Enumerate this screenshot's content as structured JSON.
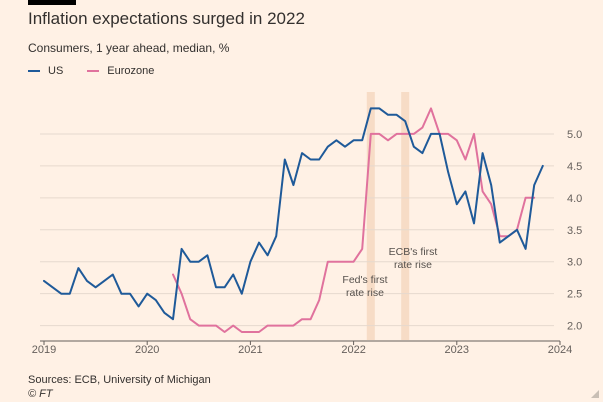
{
  "title": "Inflation expectations surged in 2022",
  "subtitle": "Consumers, 1 year ahead, median, %",
  "source": "Sources: ECB, University of Michigan",
  "credit": "© FT",
  "chart_data": {
    "type": "line",
    "x_ticks": [
      "2019",
      "2020",
      "2021",
      "2022",
      "2023",
      "2024"
    ],
    "y_ticks": [
      "2.0",
      "2.5",
      "3.0",
      "3.5",
      "4.0",
      "4.5",
      "5.0"
    ],
    "ylim": [
      1.9,
      5.5
    ],
    "xlim": [
      "2019-01",
      "2024-01"
    ],
    "grid": true,
    "legend_position": "top-left",
    "series": [
      {
        "name": "US",
        "color": "#1f5a99",
        "start": "2019-01",
        "values": [
          2.7,
          2.6,
          2.5,
          2.5,
          2.9,
          2.7,
          2.6,
          2.7,
          2.8,
          2.5,
          2.5,
          2.3,
          2.5,
          2.4,
          2.2,
          2.1,
          3.2,
          3.0,
          3.0,
          3.1,
          2.6,
          2.6,
          2.8,
          2.5,
          3.0,
          3.3,
          3.1,
          3.4,
          4.6,
          4.2,
          4.7,
          4.6,
          4.6,
          4.8,
          4.9,
          4.8,
          4.9,
          4.9,
          5.4,
          5.4,
          5.3,
          5.3,
          5.2,
          4.8,
          4.7,
          5.0,
          5.0,
          4.4,
          3.9,
          4.1,
          3.6,
          4.7,
          4.2,
          3.3,
          3.4,
          3.5,
          3.2,
          4.2,
          4.5
        ]
      },
      {
        "name": "Eurozone",
        "color": "#e0729d",
        "start": "2020-04",
        "values": [
          2.8,
          2.5,
          2.1,
          2.0,
          2.0,
          2.0,
          1.9,
          2.0,
          1.9,
          1.9,
          1.9,
          2.0,
          2.0,
          2.0,
          2.0,
          2.1,
          2.1,
          2.4,
          3.0,
          3.0,
          3.0,
          3.0,
          3.2,
          5.0,
          5.0,
          4.9,
          5.0,
          5.0,
          5.0,
          5.1,
          5.4,
          5.0,
          5.0,
          4.9,
          4.6,
          5.0,
          4.1,
          3.9,
          3.4,
          3.4,
          3.5,
          4.0,
          4.0
        ]
      }
    ],
    "annotations": [
      {
        "text": [
          "Fed's first",
          "rate rise"
        ],
        "date": "2022-03"
      },
      {
        "text": [
          "ECB's first",
          "rate rise"
        ],
        "date": "2022-07"
      }
    ]
  }
}
